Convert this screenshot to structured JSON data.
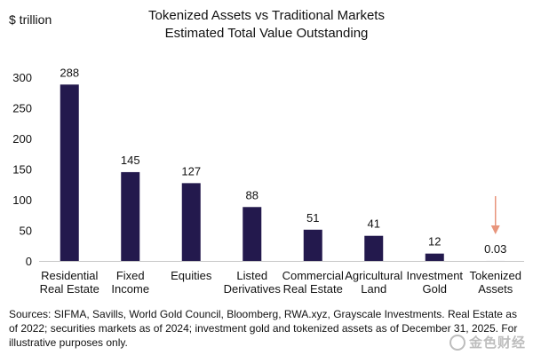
{
  "chart_data": {
    "type": "bar",
    "title": "Tokenized Assets vs Traditional Markets",
    "subtitle": "Estimated Total Value Outstanding",
    "ylabel": "$ trillion",
    "xlabel": "",
    "ylim": [
      0,
      300
    ],
    "yticks": [
      0,
      50,
      100,
      150,
      200,
      250,
      300
    ],
    "grid": false,
    "categories": [
      [
        "Residential",
        "Real Estate"
      ],
      [
        "Fixed",
        "Income"
      ],
      [
        "Equities"
      ],
      [
        "Listed",
        "Derivatives"
      ],
      [
        "Commercial",
        "Real Estate"
      ],
      [
        "Agricultural",
        "Land"
      ],
      [
        "Investment",
        "Gold"
      ],
      [
        "Tokenized",
        "Assets"
      ]
    ],
    "values": [
      288,
      145,
      127,
      88,
      51,
      41,
      12,
      0.03
    ],
    "data_labels": [
      "288",
      "145",
      "127",
      "88",
      "51",
      "41",
      "12",
      "0.03"
    ],
    "bar_color": "#23194d",
    "annotation": {
      "type": "arrow",
      "target": "Tokenized Assets",
      "color": "#e8957c"
    }
  },
  "footnote": "Sources: SIFMA, Savills, World Gold Council, Bloomberg, RWA.xyz, Grayscale Investments. Real Estate as of 2022; securities markets as of 2024; investment gold and tokenized assets as of December 31, 2025. For illustrative purposes only.",
  "watermark": "金色财经"
}
